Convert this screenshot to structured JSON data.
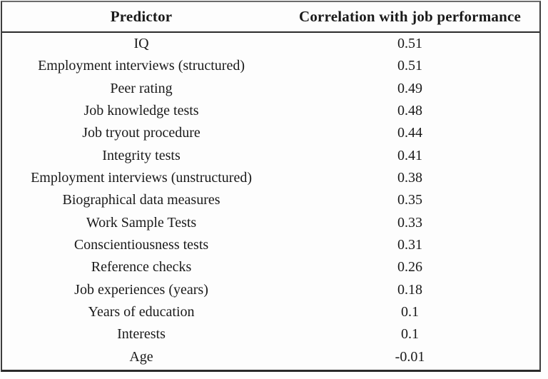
{
  "table": {
    "headers": [
      "Predictor",
      "Correlation with job performance"
    ],
    "rows": [
      {
        "predictor": "IQ",
        "value": "0.51"
      },
      {
        "predictor": "Employment interviews (structured)",
        "value": "0.51"
      },
      {
        "predictor": "Peer rating",
        "value": "0.49"
      },
      {
        "predictor": "Job knowledge tests",
        "value": "0.48"
      },
      {
        "predictor": "Job tryout procedure",
        "value": "0.44"
      },
      {
        "predictor": "Integrity tests",
        "value": "0.41"
      },
      {
        "predictor": "Employment interviews (unstructured)",
        "value": "0.38"
      },
      {
        "predictor": "Biographical data measures",
        "value": "0.35"
      },
      {
        "predictor": "Work Sample Tests",
        "value": "0.33"
      },
      {
        "predictor": "Conscientiousness tests",
        "value": "0.31"
      },
      {
        "predictor": "Reference checks",
        "value": "0.26"
      },
      {
        "predictor": "Job experiences (years)",
        "value": "0.18"
      },
      {
        "predictor": "Years of education",
        "value": "0.1"
      },
      {
        "predictor": "Interests",
        "value": "0.1"
      },
      {
        "predictor": "Age",
        "value": "-0.01"
      }
    ]
  },
  "chart_data": {
    "type": "table",
    "title": "",
    "columns": [
      "Predictor",
      "Correlation with job performance"
    ],
    "rows": [
      [
        "IQ",
        0.51
      ],
      [
        "Employment interviews (structured)",
        0.51
      ],
      [
        "Peer rating",
        0.49
      ],
      [
        "Job knowledge tests",
        0.48
      ],
      [
        "Job tryout procedure",
        0.44
      ],
      [
        "Integrity tests",
        0.41
      ],
      [
        "Employment interviews (unstructured)",
        0.38
      ],
      [
        "Biographical data measures",
        0.35
      ],
      [
        "Work Sample Tests",
        0.33
      ],
      [
        "Conscientiousness tests",
        0.31
      ],
      [
        "Reference checks",
        0.26
      ],
      [
        "Job experiences (years)",
        0.18
      ],
      [
        "Years of education",
        0.1
      ],
      [
        "Interests",
        0.1
      ],
      [
        "Age",
        -0.01
      ]
    ],
    "layout": {
      "header_bold": true,
      "value_column_align": "center",
      "predictor_column_align": "center",
      "row_separators": false,
      "column_separators": false
    }
  },
  "colors": {
    "background": "#fdfdfd",
    "text": "#1a1a1a",
    "border": "#3d3d3d",
    "header_rule": "#2b2b2b"
  }
}
